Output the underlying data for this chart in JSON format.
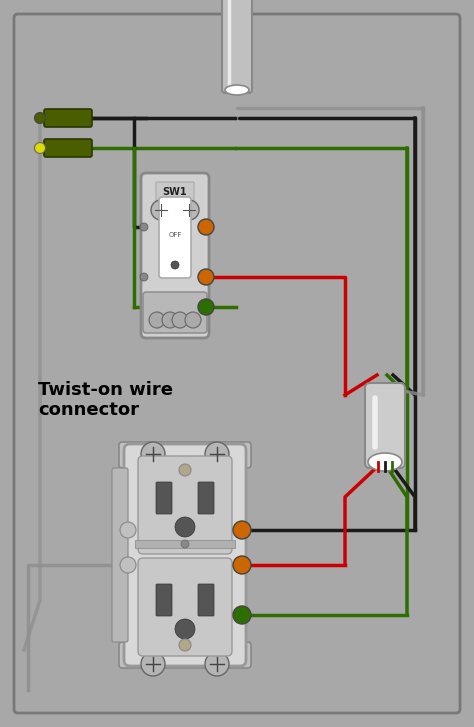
{
  "bg_color": "#a8a8a8",
  "wire_colors": {
    "black": "#1a1a1a",
    "red": "#cc0000",
    "green": "#2d6e00",
    "gray": "#909090",
    "white": "#ffffff",
    "olive": "#4a5e00"
  },
  "label_text": "Twist-on wire\nconnector",
  "label_fontsize": 13
}
